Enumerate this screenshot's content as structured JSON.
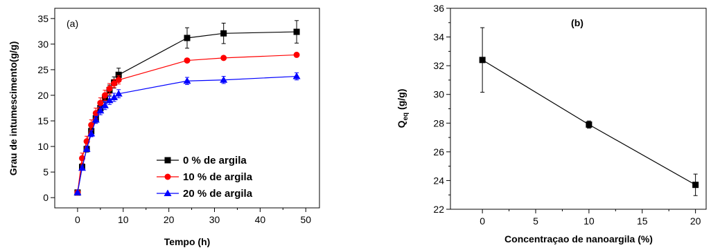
{
  "chart_data": [
    {
      "type": "line",
      "panel_label": "(a)",
      "xlabel": "Tempo (h)",
      "ylabel": "Grau de intumescimento(g/g)",
      "xlim": [
        -5,
        53
      ],
      "ylim": [
        -2,
        37
      ],
      "xticks": [
        0,
        10,
        20,
        30,
        40,
        50
      ],
      "yticks": [
        0,
        5,
        10,
        15,
        20,
        25,
        30,
        35
      ],
      "legend_position": "bottom-right",
      "series": [
        {
          "name": "0 % de argila",
          "color": "#000000",
          "marker": "square",
          "x": [
            0,
            1,
            2,
            3,
            4,
            5,
            6,
            7,
            8,
            9,
            24,
            32,
            48
          ],
          "y": [
            1.0,
            6.0,
            9.5,
            13.0,
            15.5,
            17.5,
            19.5,
            21.0,
            22.5,
            24.0,
            31.2,
            32.1,
            32.4
          ],
          "err": [
            0.3,
            0.5,
            0.6,
            0.7,
            0.8,
            0.8,
            0.9,
            1.0,
            1.1,
            1.3,
            2.0,
            2.0,
            2.2
          ]
        },
        {
          "name": "10 % de argila",
          "color": "#ff0000",
          "marker": "circle",
          "x": [
            0,
            1,
            2,
            3,
            4,
            5,
            6,
            7,
            8,
            9,
            24,
            32,
            48
          ],
          "y": [
            1.0,
            7.7,
            11.0,
            14.2,
            16.5,
            18.5,
            20.0,
            21.3,
            22.3,
            23.0,
            26.8,
            27.3,
            27.9
          ],
          "err": [
            0.2,
            1.0,
            1.0,
            1.0,
            1.0,
            1.0,
            1.0,
            1.0,
            0.8,
            0.8,
            0.3,
            0.3,
            0.3
          ]
        },
        {
          "name": "20 % de argila",
          "color": "#0000ff",
          "marker": "triangle",
          "x": [
            0,
            1,
            2,
            3,
            4,
            5,
            6,
            7,
            8,
            9,
            24,
            32,
            48
          ],
          "y": [
            1.0,
            5.8,
            9.5,
            12.5,
            15.2,
            17.0,
            18.0,
            19.0,
            19.6,
            20.3,
            22.8,
            23.0,
            23.7
          ],
          "err": [
            0.2,
            0.4,
            0.5,
            0.6,
            0.7,
            0.8,
            0.8,
            0.8,
            0.8,
            0.8,
            0.7,
            0.7,
            0.7
          ]
        }
      ]
    },
    {
      "type": "line",
      "panel_label": "(b)",
      "xlabel": "Concentraçao de nanoargila (%)",
      "ylabel_main": "Q",
      "ylabel_sub": "eq",
      "ylabel_unit": " (g/g)",
      "xlim": [
        -3,
        21
      ],
      "ylim": [
        22,
        36
      ],
      "xticks": [
        0,
        5,
        10,
        15,
        20
      ],
      "yticks": [
        22,
        24,
        26,
        28,
        30,
        32,
        34,
        36
      ],
      "series": [
        {
          "color": "#000000",
          "marker": "square",
          "x": [
            0,
            10,
            20
          ],
          "y": [
            32.4,
            27.9,
            23.7
          ],
          "err": [
            2.25,
            0.25,
            0.75
          ]
        }
      ]
    }
  ]
}
